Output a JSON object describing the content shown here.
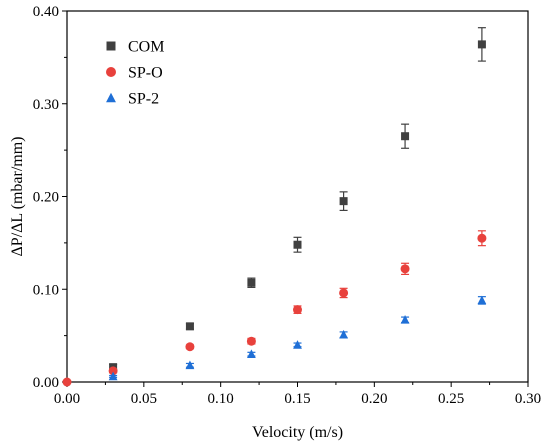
{
  "chart_data": {
    "type": "scatter",
    "title": "",
    "xlabel": "Velocity (m/s)",
    "ylabel": "ΔP/ΔL (mbar/mm)",
    "xlim": [
      0.0,
      0.3
    ],
    "ylim": [
      0.0,
      0.4
    ],
    "xticks": [
      0.0,
      0.05,
      0.1,
      0.15,
      0.2,
      0.25,
      0.3
    ],
    "xtick_labels": [
      "0.00",
      "0.05",
      "0.10",
      "0.15",
      "0.20",
      "0.25",
      "0.30"
    ],
    "yticks": [
      0.0,
      0.1,
      0.2,
      0.3,
      0.4
    ],
    "ytick_labels": [
      "0.00",
      "0.10",
      "0.20",
      "0.30",
      "0.40"
    ],
    "grid": false,
    "legend_position": "top-left",
    "series": [
      {
        "name": "COM",
        "marker": "square",
        "color": "#404040",
        "x": [
          0.03,
          0.08,
          0.12,
          0.15,
          0.18,
          0.22,
          0.27
        ],
        "y": [
          0.016,
          0.06,
          0.107,
          0.148,
          0.195,
          0.265,
          0.364
        ],
        "err": [
          0.003,
          0.003,
          0.005,
          0.008,
          0.01,
          0.013,
          0.018
        ]
      },
      {
        "name": "SP-O",
        "marker": "circle",
        "color": "#e8413c",
        "x": [
          0.0,
          0.03,
          0.08,
          0.12,
          0.15,
          0.18,
          0.22,
          0.27
        ],
        "y": [
          0.0,
          0.012,
          0.038,
          0.044,
          0.078,
          0.096,
          0.122,
          0.155
        ],
        "err": [
          0.0,
          0.002,
          0.002,
          0.003,
          0.004,
          0.005,
          0.006,
          0.008
        ]
      },
      {
        "name": "SP-2",
        "marker": "triangle",
        "color": "#1f6fd6",
        "x": [
          0.03,
          0.08,
          0.12,
          0.15,
          0.18,
          0.22,
          0.27
        ],
        "y": [
          0.006,
          0.018,
          0.03,
          0.04,
          0.051,
          0.067,
          0.088
        ],
        "err": [
          0.001,
          0.002,
          0.002,
          0.002,
          0.003,
          0.003,
          0.004
        ]
      }
    ]
  }
}
